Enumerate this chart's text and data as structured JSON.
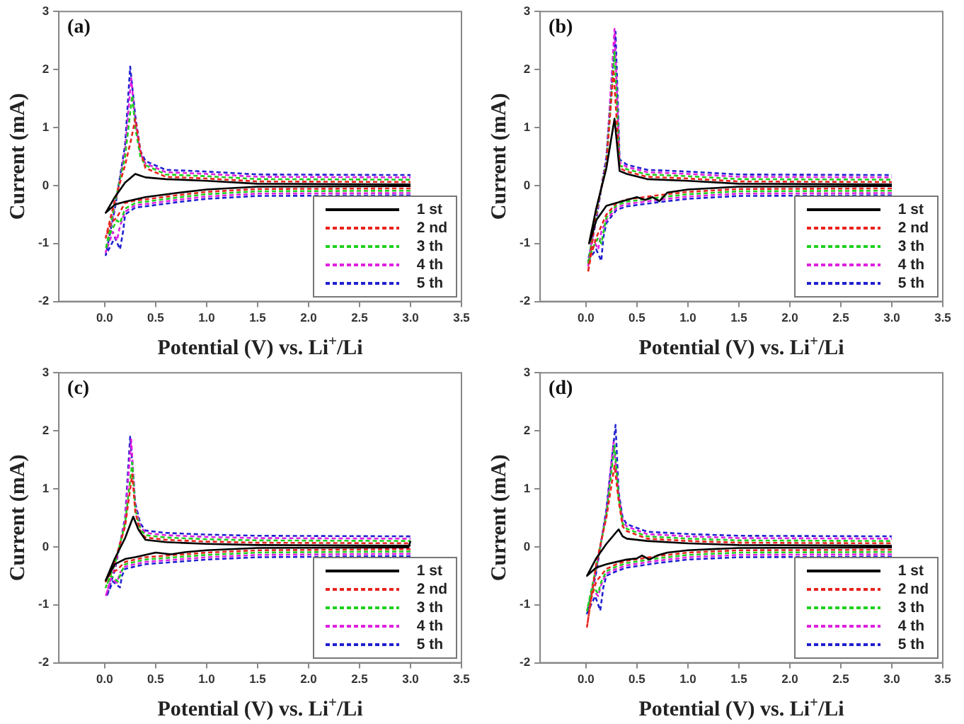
{
  "chart_data": [
    {
      "type": "line",
      "title": "(a)",
      "xlabel": "Potential (V) vs. Li$^{+}$/Li",
      "ylabel": "Current (mA)",
      "xlim": [
        -0.45,
        3.5
      ],
      "xticks": [
        {
          "value": 0,
          "label": "0.0"
        },
        0.5,
        {
          "value": 1,
          "label": "1.0"
        },
        1.5,
        {
          "value": 2,
          "label": "2.0"
        },
        2.5,
        {
          "value": 3,
          "label": "3.0"
        },
        3.5
      ],
      "ylim": [
        -2,
        3
      ],
      "yticks": [
        -2,
        -1,
        0,
        1,
        2,
        3
      ],
      "grid": false,
      "legend": "bottom right",
      "series": [
        {
          "name": "1 st",
          "color": "#000000",
          "line_style": "solid",
          "x": [
            3.0,
            1.5,
            1.0,
            0.7,
            0.4,
            0.3,
            0.2,
            0.1,
            0.01,
            0.1,
            0.2,
            0.3,
            0.35,
            0.4,
            0.6,
            1.0,
            1.5,
            3.0
          ],
          "values": [
            -0.01,
            -0.02,
            -0.07,
            -0.13,
            -0.2,
            -0.24,
            -0.28,
            -0.33,
            -0.47,
            -0.2,
            0.05,
            0.2,
            0.17,
            0.14,
            0.11,
            0.08,
            0.03,
            0.02
          ]
        },
        {
          "name": "2 nd",
          "color": "#e8231f",
          "line_style": "dashed",
          "x": [
            3.0,
            1.5,
            1.0,
            0.7,
            0.4,
            0.3,
            0.2,
            0.12,
            0.06,
            0.01,
            0.1,
            0.2,
            0.26,
            0.3,
            0.35,
            0.4,
            0.6,
            1.0,
            1.5,
            3.0
          ],
          "values": [
            -0.05,
            -0.06,
            -0.11,
            -0.17,
            -0.24,
            -0.26,
            -0.3,
            -0.55,
            -0.65,
            -0.9,
            -0.25,
            0.35,
            0.8,
            1.15,
            0.6,
            0.3,
            0.15,
            0.12,
            0.07,
            0.06
          ]
        },
        {
          "name": "3 th",
          "color": "#1fd01f",
          "line_style": "dashed",
          "x": [
            3.0,
            1.5,
            1.0,
            0.7,
            0.4,
            0.3,
            0.2,
            0.15,
            0.12,
            0.06,
            0.01,
            0.1,
            0.2,
            0.27,
            0.3,
            0.35,
            0.4,
            0.6,
            1.0,
            1.5,
            3.0
          ],
          "values": [
            -0.09,
            -0.1,
            -0.15,
            -0.21,
            -0.28,
            -0.3,
            -0.4,
            -0.65,
            -0.6,
            -0.8,
            -1.1,
            -0.3,
            0.5,
            1.55,
            1.0,
            0.5,
            0.35,
            0.19,
            0.16,
            0.11,
            0.1
          ]
        },
        {
          "name": "4 th",
          "color": "#e020e0",
          "line_style": "dashed",
          "x": [
            3.0,
            1.5,
            1.0,
            0.7,
            0.4,
            0.3,
            0.2,
            0.15,
            0.12,
            0.08,
            0.01,
            0.1,
            0.2,
            0.26,
            0.3,
            0.35,
            0.4,
            0.6,
            1.0,
            1.5,
            3.0
          ],
          "values": [
            -0.13,
            -0.14,
            -0.19,
            -0.25,
            -0.32,
            -0.34,
            -0.45,
            -0.7,
            -0.95,
            -0.8,
            -1.15,
            -0.35,
            0.6,
            1.85,
            1.1,
            0.55,
            0.38,
            0.23,
            0.2,
            0.15,
            0.14
          ]
        },
        {
          "name": "5 th",
          "color": "#2020d0",
          "line_style": "dashed",
          "x": [
            3.0,
            1.5,
            1.0,
            0.7,
            0.4,
            0.3,
            0.2,
            0.18,
            0.15,
            0.1,
            0.01,
            0.1,
            0.2,
            0.25,
            0.3,
            0.35,
            0.4,
            0.6,
            1.0,
            1.5,
            3.0
          ],
          "values": [
            -0.17,
            -0.18,
            -0.23,
            -0.29,
            -0.36,
            -0.38,
            -0.5,
            -0.8,
            -1.1,
            -0.9,
            -1.2,
            -0.4,
            0.7,
            2.05,
            1.2,
            0.6,
            0.42,
            0.27,
            0.24,
            0.19,
            0.18
          ]
        }
      ]
    },
    {
      "type": "line",
      "title": "(b)",
      "xlabel": "Potential (V) vs. Li$^{+}$/Li",
      "ylabel": "Current (mA)",
      "xlim": [
        -0.45,
        3.5
      ],
      "xticks": [
        {
          "value": 0,
          "label": "0.0"
        },
        0.5,
        {
          "value": 1,
          "label": "1.0"
        },
        1.5,
        {
          "value": 2,
          "label": "2.0"
        },
        2.5,
        {
          "value": 3,
          "label": "3.0"
        },
        3.5
      ],
      "ylim": [
        -2,
        3
      ],
      "yticks": [
        -2,
        -1,
        0,
        1,
        2,
        3
      ],
      "grid": false,
      "legend": "bottom right",
      "series": [
        {
          "name": "1 st",
          "color": "#000000",
          "line_style": "solid",
          "x": [
            3.0,
            1.5,
            1.0,
            0.8,
            0.72,
            0.65,
            0.58,
            0.5,
            0.4,
            0.2,
            0.1,
            0.05,
            0.03,
            0.1,
            0.2,
            0.28,
            0.33,
            0.4,
            0.6,
            1.0,
            1.5,
            3.0
          ],
          "values": [
            -0.01,
            -0.02,
            -0.07,
            -0.12,
            -0.27,
            -0.2,
            -0.25,
            -0.2,
            -0.25,
            -0.35,
            -0.6,
            -0.9,
            -1.0,
            -0.4,
            0.3,
            1.15,
            0.25,
            0.2,
            0.11,
            0.08,
            0.03,
            0.02
          ]
        },
        {
          "name": "2 nd",
          "color": "#e8231f",
          "line_style": "dashed",
          "x": [
            3.0,
            1.5,
            1.0,
            0.7,
            0.4,
            0.3,
            0.2,
            0.1,
            0.05,
            0.02,
            0.1,
            0.2,
            0.27,
            0.33,
            0.4,
            0.6,
            1.0,
            1.5,
            3.0
          ],
          "values": [
            -0.05,
            -0.06,
            -0.11,
            -0.17,
            -0.24,
            -0.3,
            -0.5,
            -0.9,
            -1.2,
            -1.5,
            -0.45,
            0.35,
            2.0,
            0.3,
            0.24,
            0.15,
            0.12,
            0.07,
            0.06
          ]
        },
        {
          "name": "3 th",
          "color": "#1fd01f",
          "line_style": "dashed",
          "x": [
            3.0,
            1.5,
            1.0,
            0.7,
            0.4,
            0.3,
            0.2,
            0.15,
            0.12,
            0.06,
            0.02,
            0.1,
            0.2,
            0.28,
            0.33,
            0.4,
            0.6,
            1.0,
            1.5,
            3.0
          ],
          "values": [
            -0.09,
            -0.1,
            -0.15,
            -0.21,
            -0.28,
            -0.34,
            -0.55,
            -1.0,
            -0.9,
            -1.1,
            -1.35,
            -0.5,
            0.4,
            2.3,
            0.35,
            0.28,
            0.19,
            0.16,
            0.11,
            0.1
          ]
        },
        {
          "name": "4 th",
          "color": "#e020e0",
          "line_style": "dashed",
          "x": [
            3.0,
            1.5,
            1.0,
            0.7,
            0.4,
            0.3,
            0.2,
            0.15,
            0.12,
            0.06,
            0.02,
            0.1,
            0.2,
            0.28,
            0.33,
            0.4,
            0.6,
            1.0,
            1.5,
            3.0
          ],
          "values": [
            -0.13,
            -0.14,
            -0.19,
            -0.25,
            -0.32,
            -0.38,
            -0.6,
            -0.8,
            -1.1,
            -0.9,
            -1.4,
            -0.55,
            0.45,
            2.7,
            0.4,
            0.32,
            0.23,
            0.2,
            0.15,
            0.14
          ]
        },
        {
          "name": "5 th",
          "color": "#2020d0",
          "line_style": "dashed",
          "x": [
            3.0,
            1.5,
            1.0,
            0.7,
            0.4,
            0.3,
            0.2,
            0.17,
            0.15,
            0.1,
            0.02,
            0.1,
            0.2,
            0.29,
            0.33,
            0.4,
            0.6,
            1.0,
            1.5,
            3.0
          ],
          "values": [
            -0.17,
            -0.18,
            -0.23,
            -0.29,
            -0.36,
            -0.42,
            -0.65,
            -0.9,
            -1.3,
            -1.1,
            -1.3,
            -0.6,
            0.5,
            2.65,
            0.45,
            0.36,
            0.27,
            0.24,
            0.19,
            0.18
          ]
        }
      ]
    },
    {
      "type": "line",
      "title": "(c)",
      "xlabel": "Potential (V) vs. Li$^{+}$/Li",
      "ylabel": "Current (mA)",
      "xlim": [
        -0.45,
        3.5
      ],
      "xticks": [
        {
          "value": 0,
          "label": "0.0"
        },
        0.5,
        {
          "value": 1,
          "label": "1.0"
        },
        1.5,
        {
          "value": 2,
          "label": "2.0"
        },
        2.5,
        {
          "value": 3,
          "label": "3.0"
        },
        3.5
      ],
      "ylim": [
        -2,
        3
      ],
      "yticks": [
        -2,
        -1,
        0,
        1,
        2,
        3
      ],
      "grid": false,
      "legend": "bottom right",
      "series": [
        {
          "name": "1 st",
          "color": "#000000",
          "line_style": "solid",
          "x": [
            3.0,
            2.98,
            1.5,
            1.0,
            0.8,
            0.65,
            0.5,
            0.4,
            0.3,
            0.2,
            0.1,
            0.01,
            0.1,
            0.2,
            0.28,
            0.33,
            0.4,
            0.6,
            1.0,
            1.5,
            3.0
          ],
          "values": [
            0.1,
            -0.01,
            -0.02,
            -0.06,
            -0.09,
            -0.13,
            -0.1,
            -0.14,
            -0.18,
            -0.21,
            -0.3,
            -0.58,
            -0.2,
            0.15,
            0.52,
            0.3,
            0.12,
            0.08,
            0.05,
            0.03,
            0.02
          ]
        },
        {
          "name": "2 nd",
          "color": "#e8231f",
          "line_style": "dashed",
          "x": [
            3.0,
            1.5,
            1.0,
            0.7,
            0.4,
            0.3,
            0.2,
            0.12,
            0.06,
            0.01,
            0.1,
            0.2,
            0.27,
            0.3,
            0.35,
            0.4,
            0.6,
            1.0,
            1.5,
            3.0
          ],
          "values": [
            -0.04,
            -0.06,
            -0.1,
            -0.14,
            -0.18,
            -0.22,
            -0.26,
            -0.4,
            -0.45,
            -0.6,
            -0.25,
            0.35,
            1.25,
            0.6,
            0.25,
            0.16,
            0.12,
            0.09,
            0.07,
            0.06
          ]
        },
        {
          "name": "3 th",
          "color": "#1fd01f",
          "line_style": "dashed",
          "x": [
            3.0,
            1.5,
            1.0,
            0.7,
            0.4,
            0.3,
            0.2,
            0.16,
            0.13,
            0.06,
            0.01,
            0.1,
            0.2,
            0.27,
            0.3,
            0.35,
            0.4,
            0.6,
            1.0,
            1.5,
            3.0
          ],
          "values": [
            -0.08,
            -0.1,
            -0.14,
            -0.18,
            -0.22,
            -0.26,
            -0.3,
            -0.45,
            -0.6,
            -0.5,
            -0.7,
            -0.3,
            0.4,
            1.45,
            0.65,
            0.3,
            0.2,
            0.16,
            0.13,
            0.11,
            0.1
          ]
        },
        {
          "name": "4 th",
          "color": "#e020e0",
          "line_style": "dashed",
          "x": [
            3.0,
            1.5,
            1.0,
            0.7,
            0.4,
            0.3,
            0.2,
            0.15,
            0.12,
            0.06,
            0.01,
            0.1,
            0.2,
            0.26,
            0.3,
            0.35,
            0.4,
            0.6,
            1.0,
            1.5,
            3.0
          ],
          "values": [
            -0.12,
            -0.14,
            -0.18,
            -0.22,
            -0.26,
            -0.3,
            -0.34,
            -0.45,
            -0.62,
            -0.55,
            -0.85,
            -0.35,
            0.45,
            1.85,
            0.7,
            0.35,
            0.24,
            0.2,
            0.17,
            0.15,
            0.14
          ]
        },
        {
          "name": "5 th",
          "color": "#2020d0",
          "line_style": "dashed",
          "x": [
            3.0,
            1.5,
            1.0,
            0.7,
            0.4,
            0.3,
            0.2,
            0.17,
            0.15,
            0.08,
            0.02,
            0.1,
            0.2,
            0.25,
            0.3,
            0.35,
            0.4,
            0.6,
            1.0,
            1.5,
            3.0
          ],
          "values": [
            -0.16,
            -0.18,
            -0.22,
            -0.26,
            -0.3,
            -0.34,
            -0.38,
            -0.5,
            -0.7,
            -0.6,
            -0.85,
            -0.4,
            0.5,
            1.9,
            0.75,
            0.4,
            0.28,
            0.24,
            0.21,
            0.19,
            0.18
          ]
        }
      ]
    },
    {
      "type": "line",
      "title": "(d)",
      "xlabel": "Potential (V) vs. Li$^{+}$/Li",
      "ylabel": "Current (mA)",
      "xlim": [
        -0.45,
        3.5
      ],
      "xticks": [
        {
          "value": 0,
          "label": "0.0"
        },
        0.5,
        {
          "value": 1,
          "label": "1.0"
        },
        1.5,
        {
          "value": 2,
          "label": "2.0"
        },
        2.5,
        {
          "value": 3,
          "label": "3.0"
        },
        3.5
      ],
      "ylim": [
        -2,
        3
      ],
      "yticks": [
        -2,
        -1,
        0,
        1,
        2,
        3
      ],
      "grid": false,
      "legend": "bottom right",
      "series": [
        {
          "name": "1 st",
          "color": "#000000",
          "line_style": "solid",
          "x": [
            3.0,
            1.5,
            1.0,
            0.8,
            0.7,
            0.62,
            0.55,
            0.5,
            0.4,
            0.3,
            0.2,
            0.1,
            0.01,
            0.1,
            0.2,
            0.32,
            0.36,
            0.4,
            0.6,
            1.0,
            1.5,
            3.0
          ],
          "values": [
            -0.01,
            -0.02,
            -0.06,
            -0.1,
            -0.15,
            -0.22,
            -0.15,
            -0.2,
            -0.22,
            -0.26,
            -0.3,
            -0.36,
            -0.5,
            -0.2,
            0.05,
            0.3,
            0.18,
            0.14,
            0.1,
            0.06,
            0.03,
            0.02
          ]
        },
        {
          "name": "2 nd",
          "color": "#e8231f",
          "line_style": "dashed",
          "x": [
            3.0,
            1.5,
            1.0,
            0.7,
            0.4,
            0.3,
            0.2,
            0.1,
            0.05,
            0.01,
            0.1,
            0.2,
            0.28,
            0.32,
            0.36,
            0.4,
            0.6,
            1.0,
            1.5,
            3.0
          ],
          "values": [
            -0.05,
            -0.06,
            -0.1,
            -0.16,
            -0.24,
            -0.3,
            -0.38,
            -0.6,
            -0.9,
            -1.38,
            -0.3,
            0.5,
            1.4,
            0.8,
            0.35,
            0.27,
            0.14,
            0.1,
            0.07,
            0.06
          ]
        },
        {
          "name": "3 th",
          "color": "#1fd01f",
          "line_style": "dashed",
          "x": [
            3.0,
            1.5,
            1.0,
            0.7,
            0.4,
            0.3,
            0.2,
            0.15,
            0.12,
            0.07,
            0.01,
            0.1,
            0.2,
            0.28,
            0.32,
            0.36,
            0.4,
            0.6,
            1.0,
            1.5,
            3.0
          ],
          "values": [
            -0.09,
            -0.1,
            -0.14,
            -0.2,
            -0.28,
            -0.34,
            -0.42,
            -0.6,
            -0.8,
            -0.7,
            -1.1,
            -0.35,
            0.55,
            1.75,
            0.85,
            0.4,
            0.31,
            0.18,
            0.14,
            0.11,
            0.1
          ]
        },
        {
          "name": "4 th",
          "color": "#e020e0",
          "line_style": "dashed",
          "x": [
            3.0,
            1.5,
            1.0,
            0.7,
            0.4,
            0.3,
            0.2,
            0.15,
            0.12,
            0.07,
            0.02,
            0.1,
            0.2,
            0.27,
            0.32,
            0.36,
            0.4,
            0.6,
            1.0,
            1.5,
            3.0
          ],
          "values": [
            -0.13,
            -0.14,
            -0.18,
            -0.24,
            -0.32,
            -0.38,
            -0.46,
            -0.65,
            -0.85,
            -0.75,
            -1.05,
            -0.4,
            0.6,
            1.8,
            0.9,
            0.45,
            0.35,
            0.22,
            0.18,
            0.15,
            0.14
          ]
        },
        {
          "name": "5 th",
          "color": "#2020d0",
          "line_style": "dashed",
          "x": [
            3.0,
            1.5,
            1.0,
            0.7,
            0.4,
            0.3,
            0.2,
            0.17,
            0.14,
            0.09,
            0.01,
            0.1,
            0.2,
            0.29,
            0.32,
            0.36,
            0.4,
            0.6,
            1.0,
            1.5,
            3.0
          ],
          "values": [
            -0.17,
            -0.18,
            -0.22,
            -0.28,
            -0.36,
            -0.42,
            -0.5,
            -0.7,
            -1.1,
            -0.85,
            -1.15,
            -0.45,
            0.65,
            2.1,
            0.95,
            0.5,
            0.39,
            0.26,
            0.22,
            0.19,
            0.18
          ]
        }
      ]
    }
  ]
}
